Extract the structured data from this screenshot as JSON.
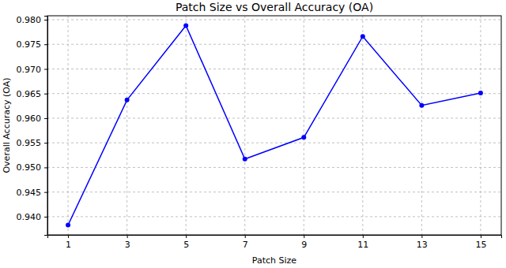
{
  "chart_data": {
    "type": "line",
    "title": "Patch Size vs Overall Accuracy (OA)",
    "x_label": "Patch Size",
    "y_label": "Overall Accuracy (OA)",
    "x": [
      1,
      3,
      5,
      7,
      9,
      11,
      13,
      15
    ],
    "values": [
      0.9383,
      0.9637,
      0.9788,
      0.9517,
      0.9561,
      0.9766,
      0.9626,
      0.9651
    ],
    "color": "#0000ff",
    "marker": "circle",
    "line_style": "solid",
    "xlim": [
      0.3,
      15.7
    ],
    "xticks": [
      1,
      3,
      5,
      7,
      9,
      11,
      13,
      15
    ],
    "ylim": [
      0.9363,
      0.9808
    ],
    "yticks": [
      {
        "value": 0.94,
        "label": "0.940"
      },
      0.945,
      {
        "value": 0.95,
        "label": "0.950"
      },
      0.955,
      {
        "value": 0.96,
        "label": "0.960"
      },
      0.965,
      {
        "value": 0.97,
        "label": "0.970"
      },
      0.975,
      {
        "value": 0.98,
        "label": "0.980"
      }
    ],
    "grid": true
  }
}
